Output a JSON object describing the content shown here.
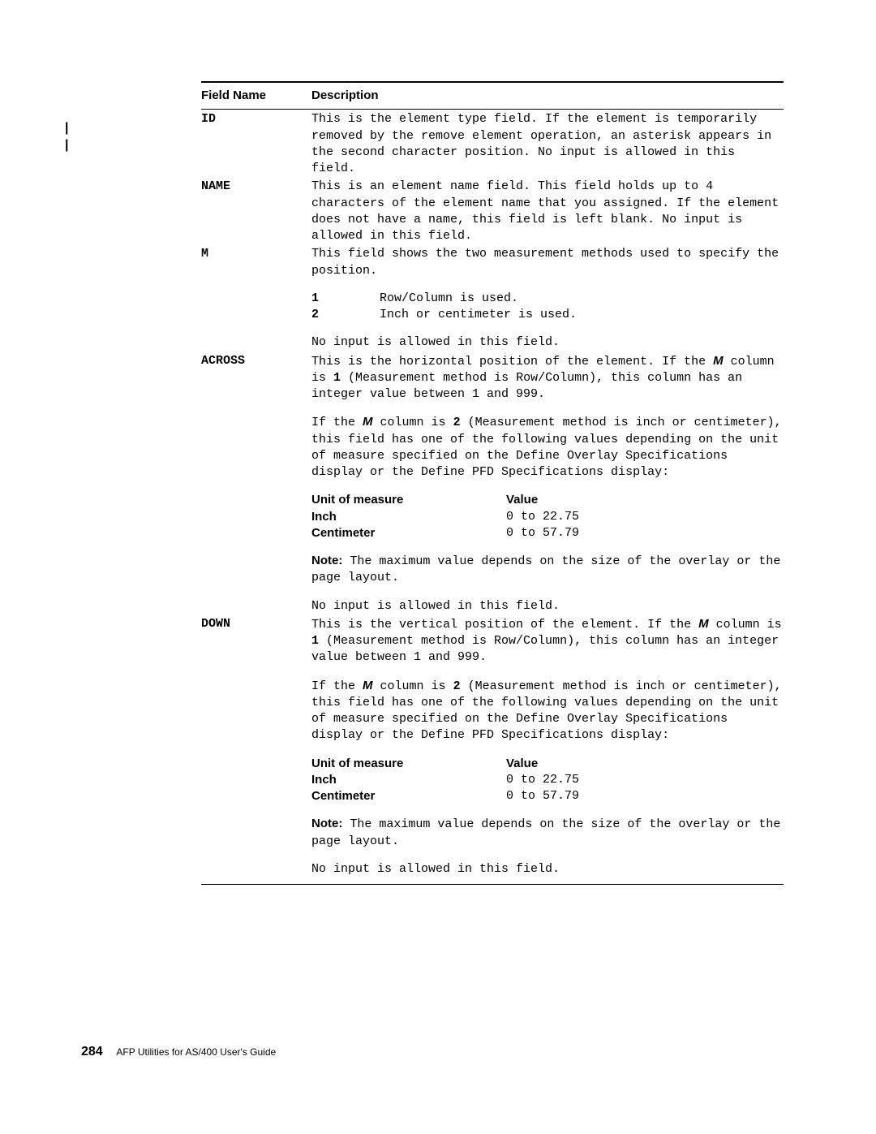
{
  "table": {
    "col1_header": "Field Name",
    "col2_header": "Description",
    "rows": {
      "id": {
        "name": "ID",
        "desc": "This is the element type field. If the element is temporarily removed by the remove element operation, an asterisk appears in the second character position. No input is allowed in this field."
      },
      "name": {
        "name": "NAME",
        "desc": "This is an element name field. This field holds up to 4 characters of the element name that you assigned. If the element does not have a name, this field is left blank. No input is allowed in this field."
      },
      "m": {
        "name": "M",
        "desc": "This field shows the two measurement methods used to specify the position.",
        "opt1_num": "1",
        "opt1_txt": "Row/Column is used.",
        "opt2_num": "2",
        "opt2_txt": "Inch or centimeter is used.",
        "noinput": "No input is allowed in this field."
      },
      "across": {
        "name": "ACROSS",
        "desc1a": "This is the horizontal position of the element. If the",
        "desc1_ref": "M",
        "desc1b": " column is",
        "desc1_num": "1",
        "desc1c": " (Measurement method is Row/Column), this column has an integer value between 1 and 999.",
        "desc2a": "If the",
        "desc2_ref": "M",
        "desc2b": " column is",
        "desc2_num": "2",
        "desc2c": " (Measurement method is inch or centimeter), this field has one of the following values depending on the unit of measure specified on the Define Overlay Specifications display or the Define PFD Specifications display:",
        "uom_h": "Unit of measure",
        "val_h": "Value",
        "inch_l": "Inch",
        "inch_v": "0 to 22.75",
        "cm_l": "Centimeter",
        "cm_v": "0 to 57.79",
        "note_lead": "Note:",
        "note": "The maximum value depends on the size of the overlay or the page layout.",
        "noinput": "No input is allowed in this field."
      },
      "down": {
        "name": "DOWN",
        "desc1a": "This is the vertical position of the element. If the",
        "desc1_ref": "M",
        "desc1b": " column is",
        "desc1_num": "1",
        "desc1c": " (Measurement method is Row/Column), this column has an integer value between 1 and 999.",
        "desc2a": "If the",
        "desc2_ref": "M",
        "desc2b": " column is",
        "desc2_num": "2",
        "desc2c": " (Measurement method is inch or centimeter), this field has one of the following values depending on the unit of measure specified on the Define Overlay Specifications display or the Define PFD Specifications display:",
        "uom_h": "Unit of measure",
        "val_h": "Value",
        "inch_l": "Inch",
        "inch_v": "0 to 22.75",
        "cm_l": "Centimeter",
        "cm_v": "0 to 57.79",
        "note_lead": "Note:",
        "note": "The maximum value depends on the size of the overlay or the page layout.",
        "noinput": "No input is allowed in this field."
      }
    }
  },
  "footer": {
    "page": "284",
    "title": "AFP Utilities for AS/400 User's Guide"
  }
}
